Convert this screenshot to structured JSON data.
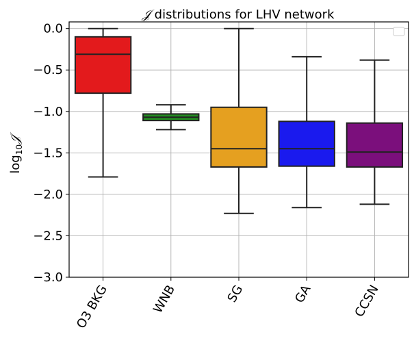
{
  "chart_data": {
    "type": "boxplot",
    "title": {
      "script": "𝒥",
      "text": " distributions for LHV network"
    },
    "xlabel": "",
    "ylabel": {
      "prefix": "log",
      "sub": "10",
      "symbol": "𝒥"
    },
    "ylim": [
      -3.0,
      0.08
    ],
    "yticks": [
      0.0,
      -0.5,
      -1.0,
      -1.5,
      -2.0,
      -2.5,
      -3.0
    ],
    "ytick_labels": [
      "0.0",
      "−0.5",
      "−1.0",
      "−1.5",
      "−2.0",
      "−2.5",
      "−3.0"
    ],
    "grid": true,
    "legend": {
      "location": "top-right",
      "entries": []
    },
    "categories": [
      "O3 BKG",
      "WNB",
      "SG",
      "GA",
      "CCSN"
    ],
    "boxes": [
      {
        "label": "O3 BKG",
        "color": "#e31a1c",
        "whisker_low": -1.79,
        "q1": -0.78,
        "median": -0.31,
        "q3": -0.1,
        "whisker_high": 0.0
      },
      {
        "label": "WNB",
        "color": "#238b21",
        "whisker_low": -1.22,
        "q1": -1.11,
        "median": -1.07,
        "q3": -1.03,
        "whisker_high": -0.92
      },
      {
        "label": "SG",
        "color": "#e5a020",
        "whisker_low": -2.23,
        "q1": -1.67,
        "median": -1.45,
        "q3": -0.95,
        "whisker_high": 0.0
      },
      {
        "label": "GA",
        "color": "#1a1aee",
        "whisker_low": -2.16,
        "q1": -1.66,
        "median": -1.45,
        "q3": -1.12,
        "whisker_high": -0.34
      },
      {
        "label": "CCSN",
        "color": "#7b0f7c",
        "whisker_low": -2.12,
        "q1": -1.67,
        "median": -1.49,
        "q3": -1.14,
        "whisker_high": -0.38
      }
    ]
  }
}
